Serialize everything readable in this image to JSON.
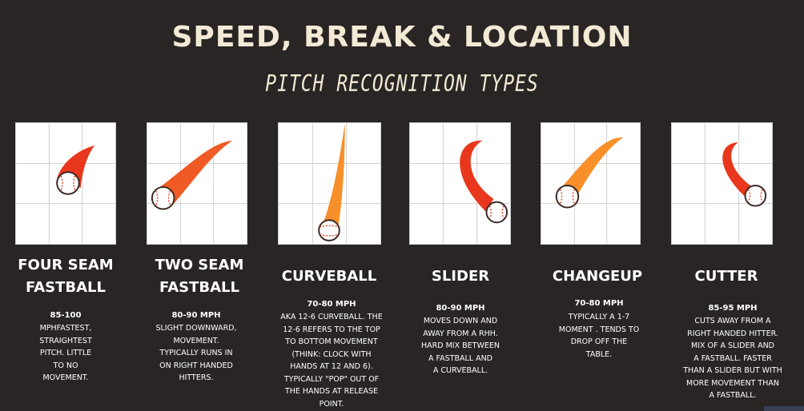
{
  "header": {
    "title": "SPEED, BREAK & LOCATION",
    "subtitle": "PITCH RECOGNITION TYPES"
  },
  "colors": {
    "background": "#292524",
    "red_trail": "#e8371c",
    "orange_trail": "#f7902a"
  },
  "pitches": [
    {
      "id": "four-seam",
      "name_line1": "FOUR SEAM",
      "name_line2": "FASTBALL",
      "speed": "85-100",
      "description": [
        "MPHFASTEST,",
        "STRAIGHTEST",
        "PITCH. LITTLE",
        "TO NO",
        "MOVEMENT."
      ],
      "trail_color": "red",
      "icon": "baseball-icon"
    },
    {
      "id": "two-seam",
      "name_line1": "TWO SEAM",
      "name_line2": "FASTBALL",
      "speed": "80-90 MPH",
      "description": [
        "SLIGHT  DOWNWARD,",
        "MOVEMENT.",
        "TYPICALLY RUNS IN",
        "ON RIGHT HANDED",
        "HITTERS."
      ],
      "trail_color": "red-orange",
      "icon": "baseball-icon"
    },
    {
      "id": "curveball",
      "name_line1": "CURVEBALL",
      "name_line2": "",
      "speed": "70-80 MPH",
      "description": [
        "AKA 12-6 CURVEBALL. THE",
        "12-6 REFERS TO THE TOP",
        "TO BOTTOM MOVEMENT",
        "(THINK: CLOCK WITH",
        "HANDS AT 12 AND 6).",
        "TYPICALLY \"POP\" OUT OF",
        "THE HANDS AT RELEASE",
        "POINT."
      ],
      "trail_color": "orange",
      "icon": "baseball-icon"
    },
    {
      "id": "slider",
      "name_line1": "SLIDER",
      "name_line2": "",
      "speed": "80-90 MPH",
      "description": [
        "MOVES DOWN AND",
        "AWAY FROM A RHH.",
        "HARD MIX BETWEEN",
        "A FASTBALL AND",
        "A CURVEBALL."
      ],
      "trail_color": "red",
      "icon": "baseball-icon"
    },
    {
      "id": "changeup",
      "name_line1": "CHANGEUP",
      "name_line2": "",
      "speed": "70-80 MPH",
      "description": [
        "TYPICALLY A 1-7",
        "MOMENT . TENDS TO",
        "DROP OFF THE",
        "TABLE."
      ],
      "trail_color": "orange",
      "icon": "baseball-icon"
    },
    {
      "id": "cutter",
      "name_line1": "CUTTER",
      "name_line2": "",
      "speed": "85-95 MPH",
      "description": [
        "CUTS AWAY FROM A",
        "RIGHT HANDED HITTER.",
        "MIX OF A SLIDER AND",
        "A FASTBALL. FASTER",
        "THAN A SLIDER BUT WITH",
        "MORE MOVEMENT THAN",
        "A FASTBALL."
      ],
      "trail_color": "red",
      "icon": "baseball-icon"
    }
  ]
}
